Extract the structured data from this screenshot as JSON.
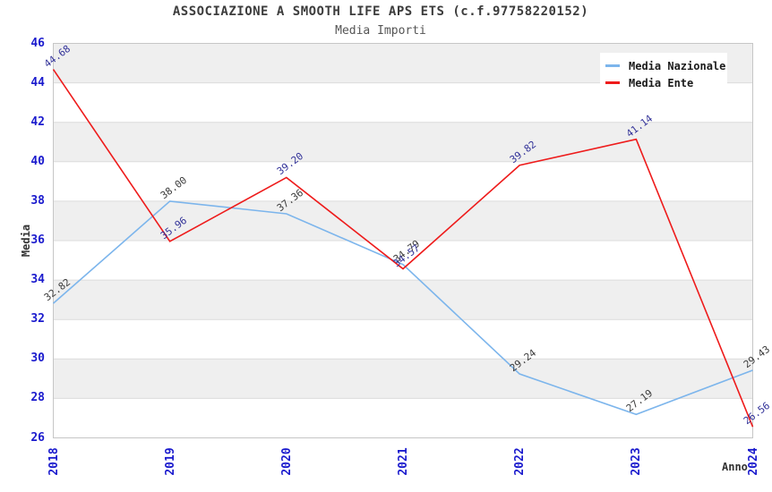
{
  "header": {
    "title": "ASSOCIAZIONE A SMOOTH LIFE APS ETS (c.f.97758220152)",
    "subtitle": "Media Importi"
  },
  "chart_data": {
    "type": "line",
    "title": "ASSOCIAZIONE A SMOOTH LIFE APS ETS (c.f.97758220152)",
    "subtitle": "Media Importi",
    "xlabel": "Anno",
    "ylabel": "Media",
    "categories": [
      "2018",
      "2019",
      "2020",
      "2021",
      "2022",
      "2023",
      "2024"
    ],
    "series": [
      {
        "name": "Media Nazionale",
        "color": "#7cb5ec",
        "label_color": "#3c3c3c",
        "values": [
          32.82,
          38.0,
          37.36,
          34.79,
          29.24,
          27.19,
          29.43
        ]
      },
      {
        "name": "Media Ente",
        "color": "#ee1b1b",
        "label_color": "#333399",
        "values": [
          44.68,
          35.96,
          39.2,
          34.57,
          39.82,
          41.14,
          26.56
        ]
      }
    ],
    "ylim": [
      26,
      46
    ],
    "ytick_step": 2,
    "tick_label_color": "#1a1acd",
    "band_color": "#efefef",
    "gridline_color": "#dcdcdc",
    "border_color": "#c6c6c6",
    "grid": "horizontal-bands",
    "legend_position": "top-right",
    "value_label_decimals": 2
  }
}
